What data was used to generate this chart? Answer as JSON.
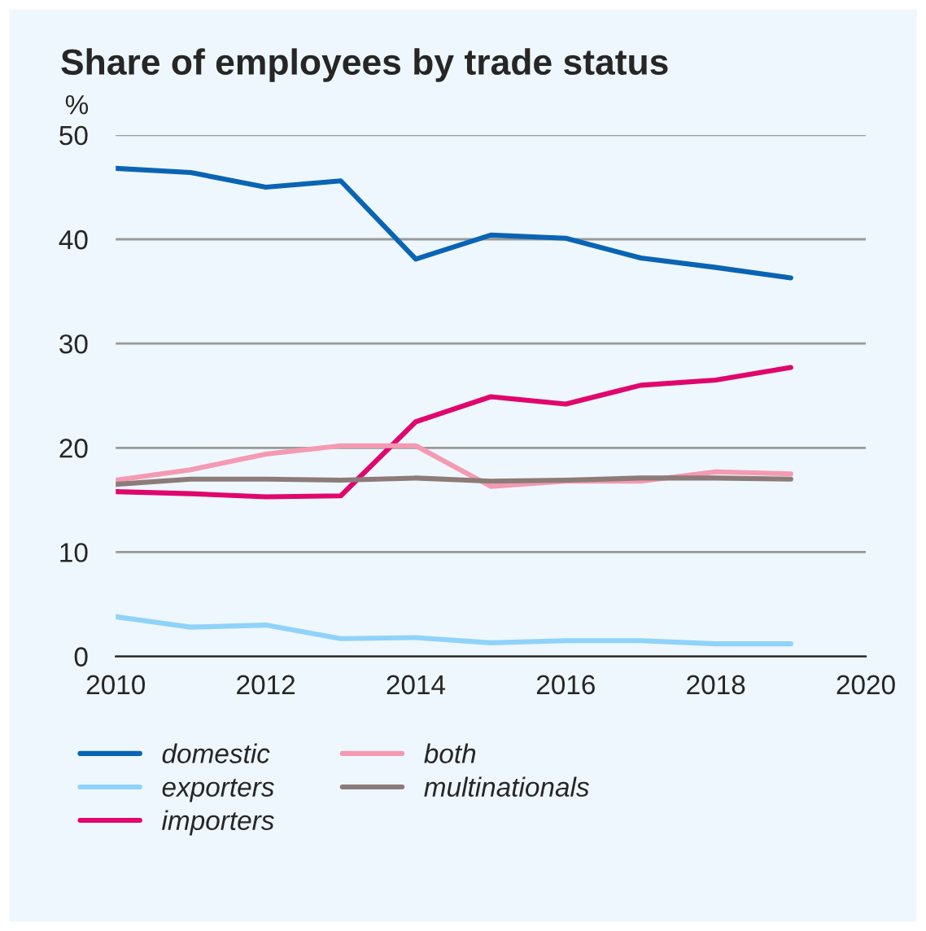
{
  "chart_data": {
    "type": "line",
    "title": "Share of employees by trade status",
    "ylabel": "%",
    "x": [
      2010,
      2011,
      2012,
      2013,
      2014,
      2015,
      2016,
      2017,
      2018,
      2019
    ],
    "series": [
      {
        "name": "domestic",
        "color": "#0a64b4",
        "values": [
          46.8,
          46.4,
          45.0,
          45.6,
          38.1,
          40.4,
          40.1,
          38.2,
          37.3,
          36.3
        ]
      },
      {
        "name": "exporters",
        "color": "#8fd3fa",
        "values": [
          3.8,
          2.8,
          3.0,
          1.7,
          1.8,
          1.3,
          1.5,
          1.5,
          1.2,
          1.2
        ]
      },
      {
        "name": "importers",
        "color": "#e0066e",
        "values": [
          15.8,
          15.6,
          15.3,
          15.4,
          22.5,
          24.9,
          24.2,
          26.0,
          26.5,
          27.7
        ]
      },
      {
        "name": "both",
        "color": "#f49ab2",
        "values": [
          16.9,
          17.9,
          19.4,
          20.2,
          20.2,
          16.3,
          16.8,
          16.8,
          17.7,
          17.5
        ]
      },
      {
        "name": "multinationals",
        "color": "#8c7b79",
        "values": [
          16.5,
          17.0,
          17.0,
          16.9,
          17.1,
          16.8,
          16.9,
          17.1,
          17.1,
          17.0
        ]
      }
    ],
    "xlim": [
      2010,
      2020
    ],
    "xticks": [
      2010,
      2012,
      2014,
      2016,
      2018,
      2020
    ],
    "ylim": [
      0,
      50
    ],
    "yticks": [
      0,
      10,
      20,
      30,
      40,
      50
    ],
    "grid": "y",
    "legend": "bottom",
    "marker": "none",
    "line_style": "solid"
  }
}
